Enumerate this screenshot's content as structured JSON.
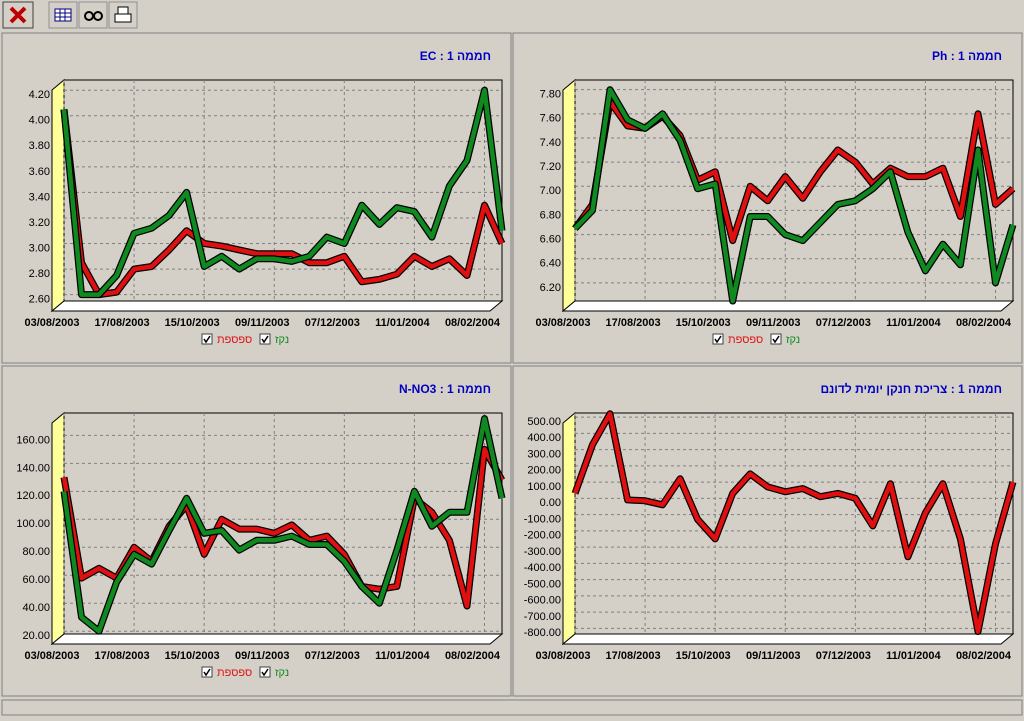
{
  "chart_data": [
    {
      "type": "line",
      "title": "חממה 1 : EC",
      "categories": [
        "03/08/2003",
        null,
        null,
        null,
        "17/08/2003",
        null,
        null,
        null,
        "15/10/2003",
        null,
        null,
        null,
        "09/11/2003",
        null,
        null,
        null,
        "07/12/2003",
        null,
        null,
        null,
        "11/01/2004",
        null,
        null,
        null,
        "08/02/2004",
        null
      ],
      "series": [
        {
          "name": "ספספת",
          "color": "#e01010",
          "values": [
            4.05,
            2.85,
            2.6,
            2.62,
            2.8,
            2.82,
            2.95,
            3.1,
            3.0,
            2.98,
            2.95,
            2.92,
            2.92,
            2.92,
            2.85,
            2.85,
            2.9,
            2.7,
            2.72,
            2.76,
            2.9,
            2.82,
            2.88,
            2.75,
            3.3,
            3.0
          ]
        },
        {
          "name": "נקז",
          "color": "#108a20",
          "values": [
            4.05,
            2.6,
            2.6,
            2.75,
            3.08,
            3.12,
            3.22,
            3.4,
            2.82,
            2.9,
            2.8,
            2.88,
            2.88,
            2.86,
            2.9,
            3.05,
            3.0,
            3.3,
            3.15,
            3.28,
            3.25,
            3.05,
            3.45,
            3.65,
            4.2,
            3.1
          ]
        }
      ],
      "ylim": [
        2.55,
        4.28
      ],
      "yticks": [
        {
          "value": 2.6,
          "label": "2.60"
        },
        {
          "value": 2.8,
          "label": "2.80"
        },
        {
          "value": 3.0,
          "label": "3.00"
        },
        {
          "value": 3.2,
          "label": "3.20"
        },
        {
          "value": 3.4,
          "label": "3.40"
        },
        {
          "value": 3.6,
          "label": "3.60"
        },
        {
          "value": 3.8,
          "label": "3.80"
        },
        {
          "value": 4.0,
          "label": "4.00"
        },
        {
          "value": 4.2,
          "label": "4.20"
        }
      ],
      "grid": true
    },
    {
      "type": "line",
      "title": "חממה 1 : Ph",
      "categories": [
        "03/08/2003",
        null,
        null,
        null,
        "17/08/2003",
        null,
        null,
        null,
        "15/10/2003",
        null,
        null,
        null,
        "09/11/2003",
        null,
        null,
        null,
        "07/12/2003",
        null,
        null,
        null,
        "11/01/2004",
        null,
        null,
        null,
        "08/02/2004",
        null
      ],
      "series": [
        {
          "name": "ספספת",
          "color": "#e01010",
          "values": [
            6.65,
            6.85,
            7.7,
            7.5,
            7.48,
            7.58,
            7.42,
            7.05,
            7.12,
            6.55,
            7.0,
            6.88,
            7.08,
            6.9,
            7.12,
            7.3,
            7.2,
            7.02,
            7.15,
            7.08,
            7.08,
            7.15,
            6.75,
            7.6,
            6.85,
            6.98
          ]
        },
        {
          "name": "נקז",
          "color": "#108a20",
          "values": [
            6.65,
            6.8,
            7.8,
            7.55,
            7.48,
            7.6,
            7.38,
            6.98,
            7.02,
            6.05,
            6.75,
            6.75,
            6.6,
            6.55,
            6.7,
            6.85,
            6.88,
            6.98,
            7.12,
            6.62,
            6.3,
            6.52,
            6.35,
            7.3,
            6.2,
            6.68
          ]
        }
      ],
      "ylim": [
        6.05,
        7.88
      ],
      "yticks": [
        {
          "value": 6.2,
          "label": "6.20"
        },
        {
          "value": 6.4,
          "label": "6.40"
        },
        {
          "value": 6.6,
          "label": "6.60"
        },
        {
          "value": 6.8,
          "label": "6.80"
        },
        {
          "value": 7.0,
          "label": "7.00"
        },
        {
          "value": 7.2,
          "label": "7.20"
        },
        {
          "value": 7.4,
          "label": "7.40"
        },
        {
          "value": 7.6,
          "label": "7.60"
        },
        {
          "value": 7.8,
          "label": "7.80"
        }
      ],
      "grid": true
    },
    {
      "type": "line",
      "title": "חממה 1 : N-NO3",
      "categories": [
        "03/08/2003",
        null,
        null,
        null,
        "17/08/2003",
        null,
        null,
        null,
        "15/10/2003",
        null,
        null,
        null,
        "09/11/2003",
        null,
        null,
        null,
        "07/12/2003",
        null,
        null,
        null,
        "11/01/2004",
        null,
        null,
        null,
        "08/02/2004",
        null
      ],
      "series": [
        {
          "name": "ספספת",
          "color": "#e01010",
          "values": [
            130,
            58,
            65,
            58,
            80,
            70,
            95,
            110,
            75,
            100,
            93,
            93,
            90,
            96,
            85,
            88,
            75,
            52,
            50,
            52,
            115,
            105,
            85,
            38,
            150,
            128
          ]
        },
        {
          "name": "נקז",
          "color": "#108a20",
          "values": [
            120,
            30,
            20,
            55,
            75,
            68,
            92,
            115,
            90,
            92,
            78,
            85,
            85,
            88,
            82,
            82,
            70,
            52,
            40,
            78,
            120,
            95,
            105,
            105,
            172,
            115
          ]
        }
      ],
      "ylim": [
        18,
        176
      ],
      "yticks": [
        {
          "value": 20,
          "label": "20.00"
        },
        {
          "value": 40,
          "label": "40.00"
        },
        {
          "value": 60,
          "label": "60.00"
        },
        {
          "value": 80,
          "label": "80.00"
        },
        {
          "value": 100,
          "label": "100.00"
        },
        {
          "value": 120,
          "label": "120.00"
        },
        {
          "value": 140,
          "label": "140.00"
        },
        {
          "value": 160,
          "label": "160.00"
        }
      ],
      "grid": true
    },
    {
      "type": "line",
      "title": "חממה 1 : צריכת חנקן יומית לדונם",
      "categories": [
        "03/08/2003",
        null,
        null,
        null,
        "17/08/2003",
        null,
        null,
        null,
        "15/10/2003",
        null,
        null,
        null,
        "09/11/2003",
        null,
        null,
        null,
        "07/12/2003",
        null,
        null,
        null,
        "11/01/2004",
        null,
        null,
        null,
        "08/02/2004",
        null
      ],
      "series": [
        {
          "color": "#e01010",
          "values": [
            30,
            330,
            520,
            -10,
            -15,
            -40,
            120,
            -130,
            -250,
            30,
            150,
            70,
            40,
            60,
            10,
            30,
            0,
            -170,
            90,
            -360,
            -90,
            90,
            -250,
            -820,
            -280,
            100
          ]
        }
      ],
      "ylim": [
        -835,
        525
      ],
      "yticks": [
        {
          "value": -800,
          "label": "-800.00"
        },
        {
          "value": -700,
          "label": "-700.00"
        },
        {
          "value": -600,
          "label": "-600.00"
        },
        {
          "value": -500,
          "label": "-500.00"
        },
        {
          "value": -400,
          "label": "-400.00"
        },
        {
          "value": -300,
          "label": "-300.00"
        },
        {
          "value": -200,
          "label": "-200.00"
        },
        {
          "value": -100,
          "label": "-100.00"
        },
        {
          "value": 0,
          "label": "0.00"
        },
        {
          "value": 100,
          "label": "100.00"
        },
        {
          "value": 200,
          "label": "200.00"
        },
        {
          "value": 300,
          "label": "300.00"
        },
        {
          "value": 400,
          "label": "400.00"
        },
        {
          "value": 500,
          "label": "500.00"
        }
      ],
      "grid": true
    }
  ]
}
